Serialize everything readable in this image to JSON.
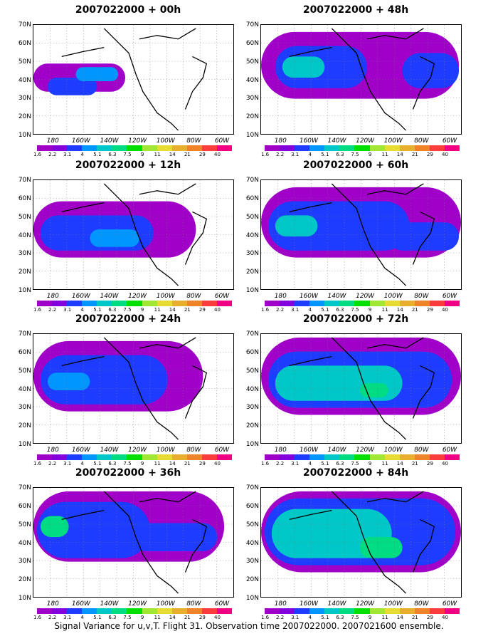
{
  "caption": "Signal Variance for u,v,T. Flight 31. Observation time 2007022000. 2007021600 ensemble.",
  "lat_labels": [
    "70N",
    "60N",
    "50N",
    "40N",
    "30N",
    "20N",
    "10N"
  ],
  "lon_labels": [
    "180",
    "160W",
    "140W",
    "120W",
    "100W",
    "80W",
    "60W"
  ],
  "colorbar": {
    "labels": [
      "1.6",
      "2.2",
      "3.1",
      "4",
      "5.1",
      "6.3",
      "7.5",
      "9",
      "11",
      "14",
      "21",
      "29",
      "40"
    ],
    "colors": [
      "#a000c8",
      "#8200dc",
      "#1e3cff",
      "#0096ff",
      "#00c8c8",
      "#00dc82",
      "#00e000",
      "#a0e632",
      "#e6dc32",
      "#e6af2d",
      "#f08228",
      "#fa3c3c",
      "#f00082"
    ]
  },
  "panels": [
    {
      "title": "2007022000 + 00h"
    },
    {
      "title": "2007022000 + 48h"
    },
    {
      "title": "2007022000 + 12h"
    },
    {
      "title": "2007022000 + 60h"
    },
    {
      "title": "2007022000 + 24h"
    },
    {
      "title": "2007022000 + 72h"
    },
    {
      "title": "2007022000 + 36h"
    },
    {
      "title": "2007022000 + 84h"
    }
  ]
}
